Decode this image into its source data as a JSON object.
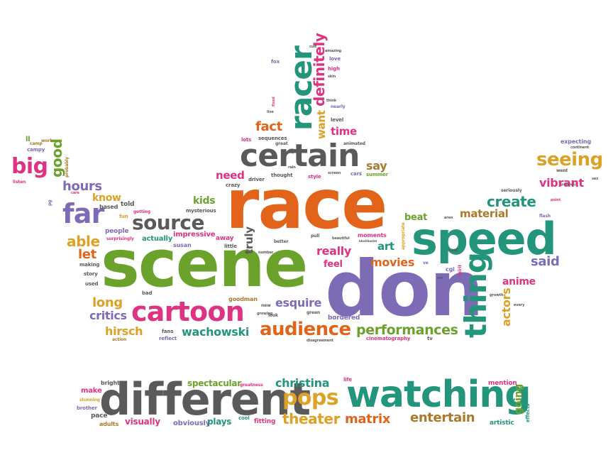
{
  "palette": {
    "orange": "#e2641b",
    "purple": "#7d6bb5",
    "green": "#6aa22c",
    "pink": "#dd3382",
    "teal": "#23957a",
    "gray": "#5a5a5a",
    "mustard": "#dca125",
    "brown": "#a87a2b"
  },
  "words": [
    {
      "text": "race"
    },
    {
      "text": "scene"
    },
    {
      "text": "don"
    },
    {
      "text": "speed"
    },
    {
      "text": "different"
    },
    {
      "text": "watching"
    },
    {
      "text": "certain"
    },
    {
      "text": "cartoon"
    },
    {
      "text": "thing"
    },
    {
      "text": "racer"
    },
    {
      "text": "far"
    },
    {
      "text": "source"
    },
    {
      "text": "audience"
    },
    {
      "text": "seeing"
    },
    {
      "text": "definitely"
    },
    {
      "text": "performances"
    },
    {
      "text": "pops"
    },
    {
      "text": "christina"
    },
    {
      "text": "theater"
    },
    {
      "text": "matrix"
    },
    {
      "text": "entertain"
    },
    {
      "text": "spectacular"
    },
    {
      "text": "visually"
    },
    {
      "text": "obviously"
    },
    {
      "text": "plays"
    },
    {
      "text": "fitting"
    },
    {
      "text": "artistic"
    },
    {
      "text": "going"
    },
    {
      "text": "mention"
    },
    {
      "text": "make"
    },
    {
      "text": "bright"
    },
    {
      "text": "pace"
    },
    {
      "text": "adults"
    },
    {
      "text": "brother"
    },
    {
      "text": "stunning"
    },
    {
      "text": "greatness"
    },
    {
      "text": "cool"
    },
    {
      "text": "life"
    },
    {
      "text": "effects"
    },
    {
      "text": "big"
    },
    {
      "text": "good"
    },
    {
      "text": "hours"
    },
    {
      "text": "able"
    },
    {
      "text": "let"
    },
    {
      "text": "long"
    },
    {
      "text": "critics"
    },
    {
      "text": "hirsch"
    },
    {
      "text": "wachowski"
    },
    {
      "text": "esquire"
    },
    {
      "text": "really"
    },
    {
      "text": "feel"
    },
    {
      "text": "movies"
    },
    {
      "text": "art"
    },
    {
      "text": "create"
    },
    {
      "text": "material"
    },
    {
      "text": "said"
    },
    {
      "text": "vibrant"
    },
    {
      "text": "anime"
    },
    {
      "text": "actors"
    },
    {
      "text": "beat"
    },
    {
      "text": "say"
    },
    {
      "text": "need"
    },
    {
      "text": "kids"
    },
    {
      "text": "know"
    },
    {
      "text": "fact"
    },
    {
      "text": "time"
    },
    {
      "text": "want"
    },
    {
      "text": "truly"
    },
    {
      "text": "told"
    },
    {
      "text": "people"
    },
    {
      "text": "impressive"
    },
    {
      "text": "actually"
    },
    {
      "text": "away"
    },
    {
      "text": "mysterious"
    },
    {
      "text": "susan"
    },
    {
      "text": "fun"
    },
    {
      "text": "getting"
    },
    {
      "text": "based"
    },
    {
      "text": "surprisingly"
    },
    {
      "text": "making"
    },
    {
      "text": "story"
    },
    {
      "text": "used"
    },
    {
      "text": "bad"
    },
    {
      "text": "fans"
    },
    {
      "text": "reflect"
    },
    {
      "text": "action"
    },
    {
      "text": "goodman"
    },
    {
      "text": "new"
    },
    {
      "text": "look"
    },
    {
      "text": "green"
    },
    {
      "text": "bordered"
    },
    {
      "text": "disagreement"
    },
    {
      "text": "cinematography"
    },
    {
      "text": "tv"
    },
    {
      "text": "expecting"
    },
    {
      "text": "continent"
    },
    {
      "text": "went"
    },
    {
      "text": "sex"
    },
    {
      "text": "seriously"
    },
    {
      "text": "point"
    },
    {
      "text": "flash"
    },
    {
      "text": "aren"
    },
    {
      "text": "cast"
    },
    {
      "text": "cgi"
    },
    {
      "text": "spirit"
    },
    {
      "text": "ve"
    },
    {
      "text": "set"
    },
    {
      "text": "every"
    },
    {
      "text": "appropriate"
    },
    {
      "text": "blockbuster"
    },
    {
      "text": "moments"
    },
    {
      "text": "beautiful"
    },
    {
      "text": "pull"
    },
    {
      "text": "better"
    },
    {
      "text": "number"
    },
    {
      "text": "little"
    },
    {
      "text": "crazy"
    },
    {
      "text": "driver"
    },
    {
      "text": "thought"
    },
    {
      "text": "style"
    },
    {
      "text": "screen"
    },
    {
      "text": "cars"
    },
    {
      "text": "summer"
    },
    {
      "text": "lots"
    },
    {
      "text": "sequences"
    },
    {
      "text": "great"
    },
    {
      "text": "rain"
    },
    {
      "text": "level"
    },
    {
      "text": "animated"
    },
    {
      "text": "nearly"
    },
    {
      "text": "think"
    },
    {
      "text": "love"
    },
    {
      "text": "high"
    },
    {
      "text": "amazing"
    },
    {
      "text": "fox"
    },
    {
      "text": "skin"
    },
    {
      "text": "camp"
    },
    {
      "text": "campy"
    },
    {
      "text": "work"
    },
    {
      "text": "probably"
    },
    {
      "text": "listen"
    },
    {
      "text": "care"
    },
    {
      "text": "pg"
    },
    {
      "text": "ll"
    },
    {
      "text": "live"
    },
    {
      "text": "fixed"
    },
    {
      "text": "cult"
    },
    {
      "text": "growing"
    },
    {
      "text": "growth"
    },
    {
      "text": "growingly"
    }
  ]
}
